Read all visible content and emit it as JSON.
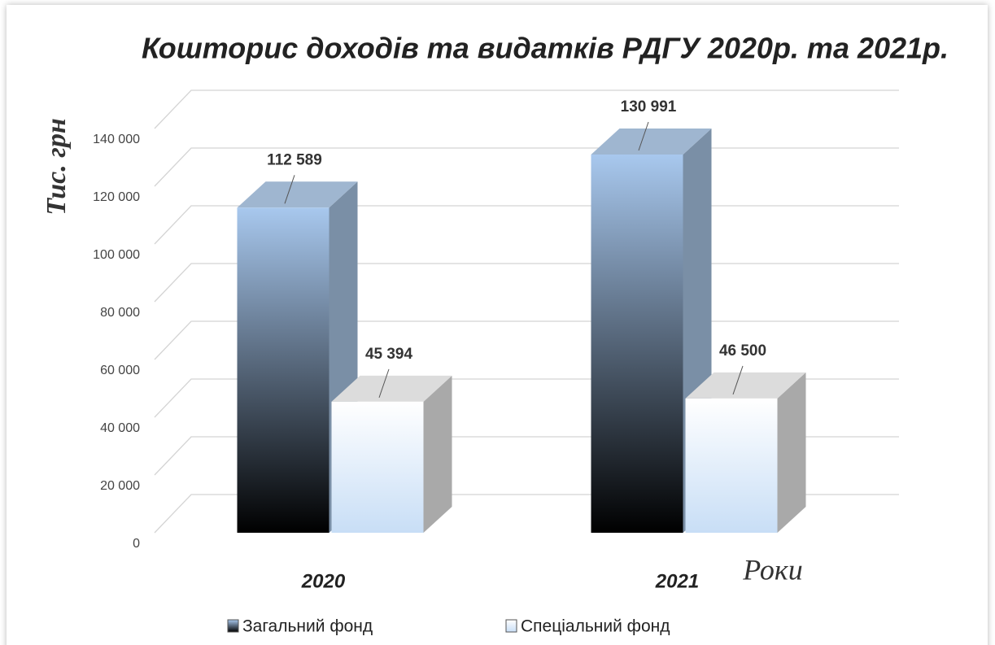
{
  "chart_data": {
    "type": "bar3d",
    "title": "Кошторис доходів та видатків РДГУ 2020р. та 2021р.",
    "y_label": "Тис. грн",
    "x_label": "Роки",
    "categories": [
      "2020",
      "2021"
    ],
    "series": [
      {
        "name": "Загальний фонд",
        "color": "#a8c8ee",
        "values": [
          112589,
          130991
        ],
        "value_labels": [
          "112 589",
          "130 991"
        ]
      },
      {
        "name": "Спеціальний фонд",
        "color": "#ffffff",
        "values": [
          45394,
          46500
        ],
        "value_labels": [
          "45 394",
          "46 500"
        ]
      }
    ],
    "ylim": [
      0,
      140000
    ],
    "yticks": [
      0,
      {
        "value": 20000,
        "label": "20 000"
      },
      {
        "value": 40000,
        "label": "40 000"
      },
      {
        "value": 60000,
        "label": "60 000"
      },
      {
        "value": 80000,
        "label": "80 000"
      },
      {
        "value": 100000,
        "label": "100 000"
      },
      {
        "value": 120000,
        "label": "120 000"
      },
      {
        "value": 140000,
        "label": "140 000"
      }
    ],
    "grid": true,
    "legend": "bottom"
  }
}
